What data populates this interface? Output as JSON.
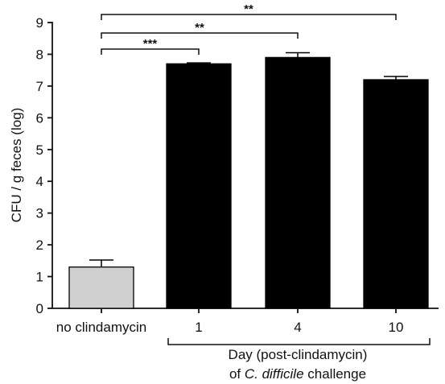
{
  "chart_data": {
    "type": "bar",
    "categories": [
      "no clindamycin",
      "1",
      "4",
      "10"
    ],
    "values": [
      1.3,
      7.7,
      7.9,
      7.2
    ],
    "errors": [
      0.22,
      0.03,
      0.15,
      0.1
    ],
    "bar_colors": [
      "#d0d0d0",
      "#000000",
      "#000000",
      "#000000"
    ],
    "title": "",
    "ylabel": "CFU / g feces (log)",
    "xlabel_line1": "Day (post-clindamycin)",
    "xlabel_line2_prefix": "of ",
    "xlabel_line2_italic": "C. difficile",
    "xlabel_line2_suffix": " challenge",
    "ylim": [
      0,
      9
    ],
    "yticks": [
      0,
      1,
      2,
      3,
      4,
      5,
      6,
      7,
      8,
      9
    ],
    "grid": false,
    "significance": [
      {
        "from": 0,
        "to": 1,
        "label": "***"
      },
      {
        "from": 0,
        "to": 2,
        "label": "**"
      },
      {
        "from": 0,
        "to": 3,
        "label": "**"
      }
    ]
  }
}
